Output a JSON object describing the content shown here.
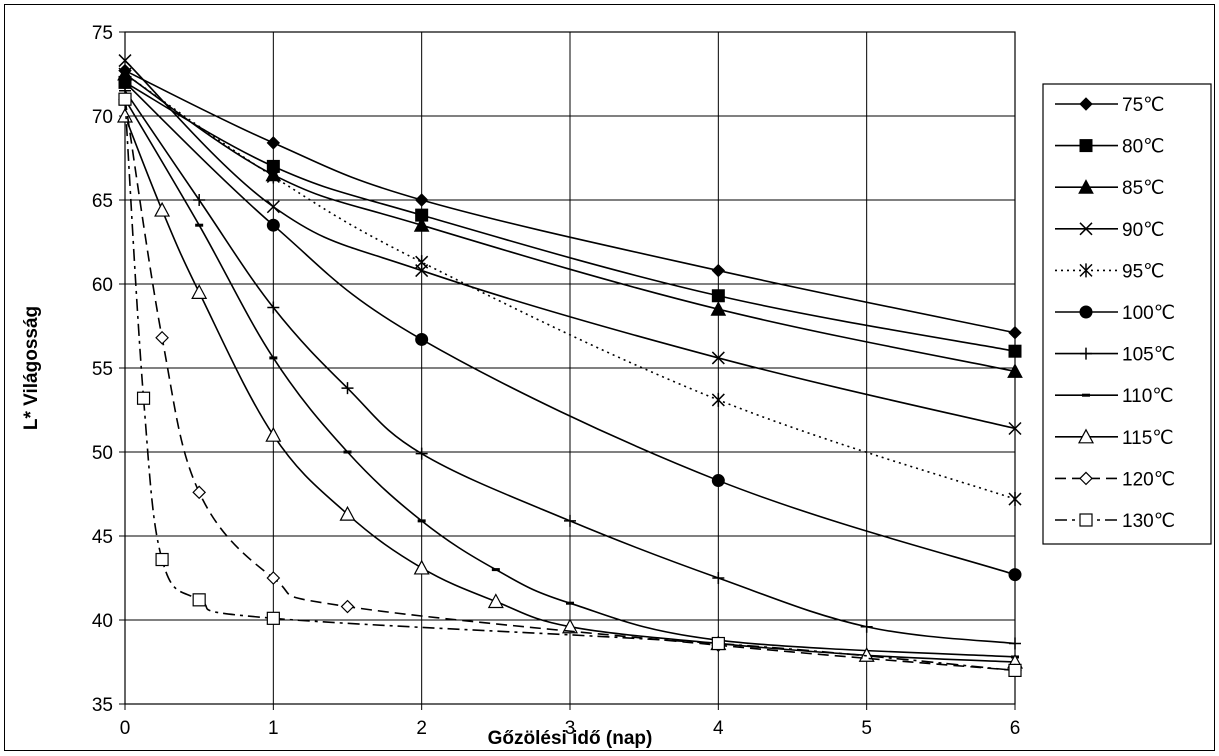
{
  "chart_data": {
    "type": "line",
    "xlabel": "Gőzölési idő (nap)",
    "ylabel": "L* Világosság",
    "xlim": [
      0,
      6
    ],
    "ylim": [
      35,
      75
    ],
    "x_ticks": [
      "0",
      "1",
      "2",
      "3",
      "4",
      "5",
      "6"
    ],
    "y_ticks": [
      "35",
      "40",
      "45",
      "50",
      "55",
      "60",
      "65",
      "70",
      "75"
    ],
    "grid": true,
    "legend_position": "right",
    "series": [
      {
        "name": "75℃",
        "marker": "diamond-filled",
        "line": "solid",
        "x": [
          0,
          1,
          2,
          4,
          6
        ],
        "y": [
          72.7,
          68.4,
          65.0,
          60.8,
          57.1
        ]
      },
      {
        "name": "80℃",
        "marker": "square-filled",
        "line": "solid",
        "x": [
          0,
          1,
          2,
          4,
          6
        ],
        "y": [
          72.0,
          67.0,
          64.1,
          59.3,
          56.0
        ]
      },
      {
        "name": "85℃",
        "marker": "triangle-filled",
        "line": "solid",
        "x": [
          0,
          1,
          2,
          4,
          6
        ],
        "y": [
          72.5,
          66.5,
          63.5,
          58.5,
          54.8
        ]
      },
      {
        "name": "90℃",
        "marker": "x",
        "line": "solid",
        "x": [
          0,
          1,
          2,
          4,
          6
        ],
        "y": [
          73.3,
          64.6,
          60.8,
          55.6,
          51.4
        ]
      },
      {
        "name": "95℃",
        "marker": "asterisk",
        "line": "dotted",
        "x": [
          0,
          1,
          2,
          4,
          6
        ],
        "y": [
          72.5,
          66.4,
          61.3,
          53.1,
          47.2
        ]
      },
      {
        "name": "100℃",
        "marker": "circle-filled",
        "line": "solid",
        "x": [
          0,
          1,
          2,
          4,
          6
        ],
        "y": [
          72.0,
          63.5,
          56.7,
          48.3,
          42.7
        ]
      },
      {
        "name": "105℃",
        "marker": "plus",
        "line": "solid",
        "x": [
          0,
          0.5,
          1,
          1.5,
          2,
          3,
          4,
          5,
          6
        ],
        "y": [
          71.5,
          65.0,
          58.6,
          53.8,
          49.9,
          45.9,
          42.5,
          39.6,
          38.6
        ]
      },
      {
        "name": "110℃",
        "marker": "dash",
        "line": "solid",
        "x": [
          0,
          0.5,
          1,
          1.5,
          2,
          2.5,
          3,
          4,
          6
        ],
        "y": [
          71.0,
          63.5,
          55.6,
          50.0,
          45.9,
          43.0,
          41.0,
          38.8,
          37.8
        ]
      },
      {
        "name": "115℃",
        "marker": "triangle-open",
        "line": "solid",
        "x": [
          0,
          0.25,
          0.5,
          1,
          1.5,
          2,
          2.5,
          3,
          4,
          5,
          6
        ],
        "y": [
          70.0,
          64.4,
          59.5,
          51.0,
          46.3,
          43.1,
          41.1,
          39.6,
          38.6,
          37.9,
          37.5
        ]
      },
      {
        "name": "120℃",
        "marker": "diamond-open",
        "line": "dashed",
        "x": [
          0,
          0.25,
          0.5,
          1,
          1.5,
          4,
          6
        ],
        "y": [
          71.0,
          56.8,
          47.6,
          42.5,
          40.8,
          38.5,
          37.0
        ]
      },
      {
        "name": "130℃",
        "marker": "square-open",
        "line": "dashdot",
        "x": [
          0,
          0.125,
          0.25,
          0.5,
          1,
          4,
          6
        ],
        "y": [
          71.0,
          53.2,
          43.6,
          41.2,
          40.1,
          38.6,
          37.0
        ]
      }
    ]
  }
}
